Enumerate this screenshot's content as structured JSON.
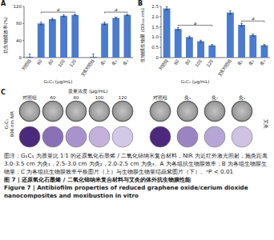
{
  "chart_data": [
    {
      "type": "bar",
      "panel": "A",
      "ylabel": "抗生物膜效率(%)",
      "xlabel": "G₁C₁ (μg/mL)",
      "categories": [
        "对照组",
        "60",
        "80",
        "100",
        "120",
        "艾灸对照组",
        "灸₁",
        "灸₂",
        "灸₃"
      ],
      "values": [
        2,
        80,
        90,
        98,
        100,
        2,
        80,
        93,
        100
      ],
      "errors": [
        6,
        3,
        2,
        2,
        1,
        6,
        3,
        2,
        1
      ],
      "color": "#4a7bd0",
      "ylim": [
        0,
        120
      ],
      "yticks": [
        0,
        40,
        80,
        120
      ],
      "grid": false,
      "annotations": [
        {
          "text": "a",
          "from": 1,
          "to": 4
        },
        {
          "text": "a",
          "from": 6,
          "to": 8
        }
      ]
    },
    {
      "type": "bar",
      "panel": "B",
      "ylabel": "生物膜生物量 (OD₅₉₅ nm)",
      "xlabel": "G₁C₁ (μg/mL)",
      "categories": [
        "对照组",
        "60",
        "80",
        "100",
        "120",
        "艾灸对照组",
        "灸₁",
        "灸₂",
        "灸₃"
      ],
      "values": [
        2.4,
        1.4,
        1.0,
        0.8,
        0.6,
        2.2,
        1.6,
        1.1,
        0.6
      ],
      "errors": [
        0.08,
        0.06,
        0.05,
        0.05,
        0.04,
        0.08,
        0.07,
        0.05,
        0.04
      ],
      "color": "#4a7bd0",
      "ylim": [
        0,
        2.5
      ],
      "yticks": [
        0,
        0.5,
        {
          "value": 1,
          "label": "1.0"
        },
        1.5,
        {
          "value": 2,
          "label": "2.0"
        },
        2.5
      ],
      "grid": false,
      "annotations": [
        {
          "text": "a",
          "from": 1,
          "to": 4
        },
        {
          "text": "a",
          "from": 6,
          "to": 8
        }
      ]
    }
  ],
  "panel_c": {
    "panel": "C",
    "title": "质量浓度 (μg/mL)",
    "left": {
      "row_label": [
        "G₁C₁",
        "808 nm NIR"
      ],
      "columns": [
        "对照组",
        "60",
        "80",
        "100",
        "120"
      ]
    },
    "right": {
      "row_label": [
        "艾灸"
      ],
      "columns": [
        "对照组",
        "灸₁",
        "灸₂",
        "灸₃"
      ]
    }
  },
  "caption": {
    "note": "图注：G₁C₁ 为质量比 1∶1 的还原氧化石墨烯 / 二氧化铈纳米复合材料，NIR 为近红外激光照射，施灸距离 3.0-3.5 cm 为灸₁，2.5-3.0 cm 为灸₂，2.0-2.5 cm 为灸₃。A 为各组抗生物膜效率；B 为各组生物膜生物量；C 为各组抗生物膜效率平板图片（上）与生物膜生物量结晶紫图片（下）。ᵃP < 0.01",
    "title_cn": "图 7 | 还原氧化石墨烯 / 二氧化铈纳米复合材料与艾灸的体外抗生物膜性能",
    "title_en": "Figure 7 | Antibiofilm properties of reduced graphene oxide/cerium dioxide nanocomposites and moxibustion in vitro"
  }
}
